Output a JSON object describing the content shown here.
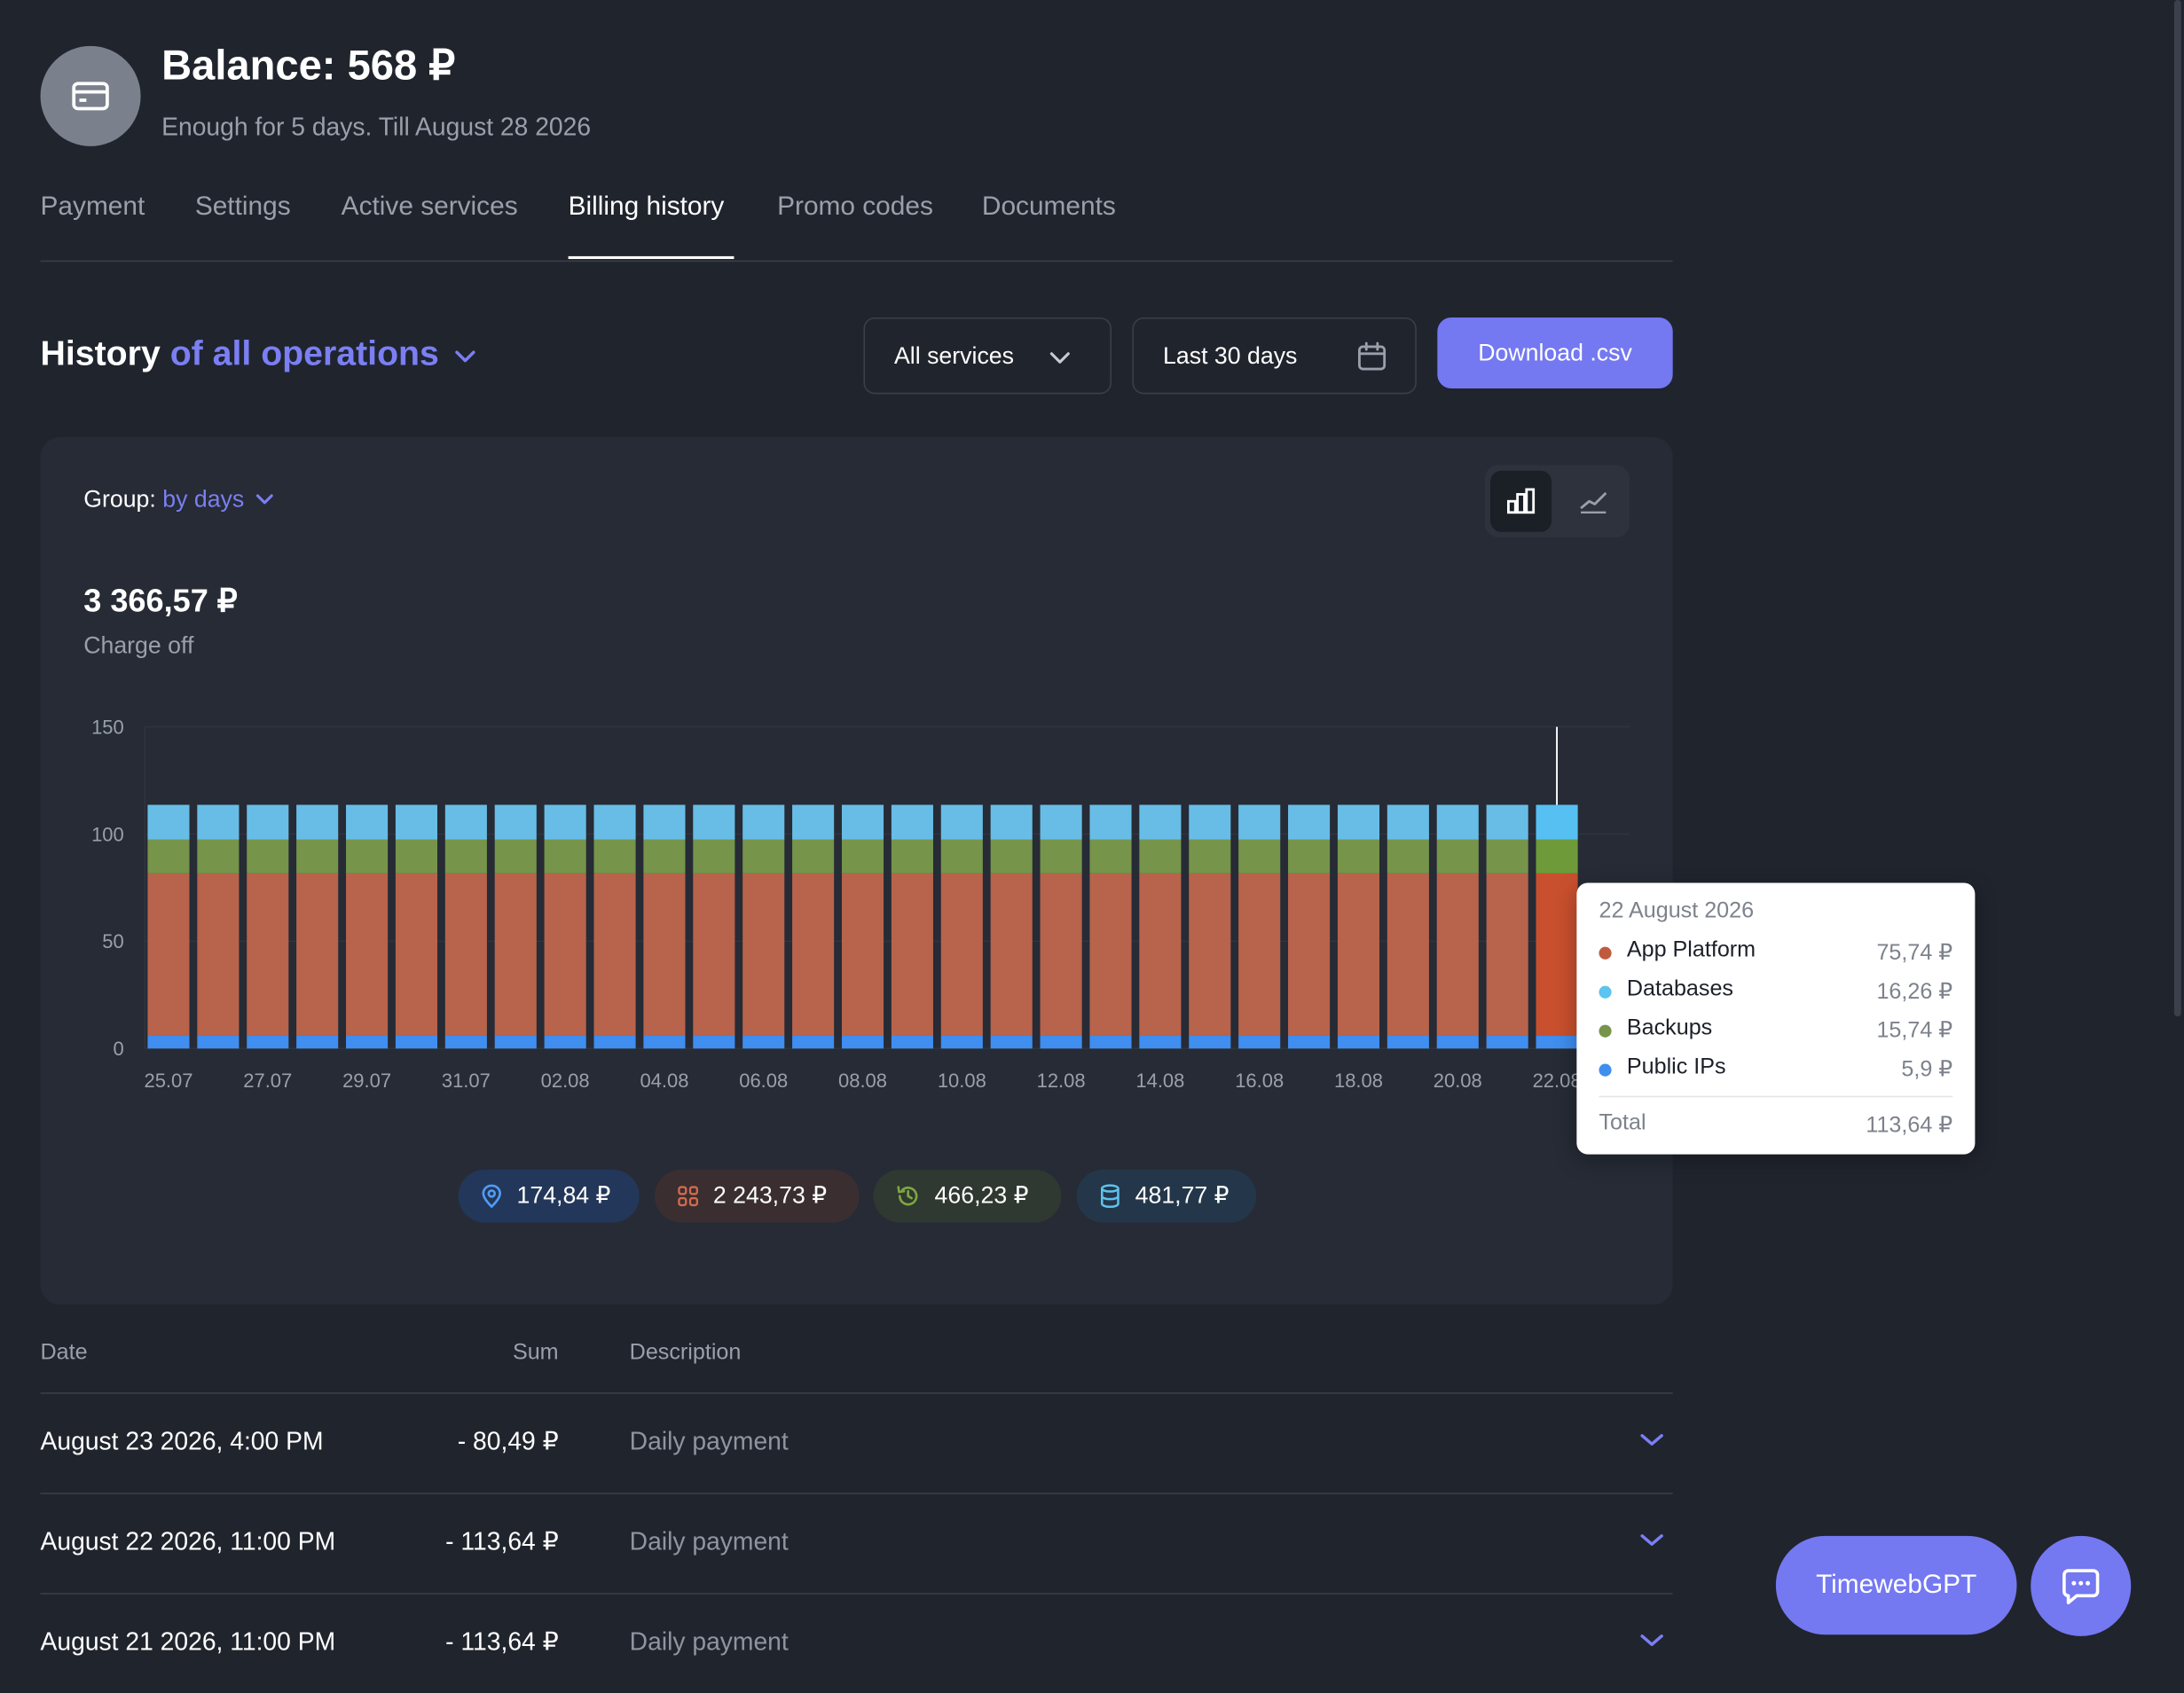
{
  "header": {
    "icon": "credit-card-icon",
    "balance": "Balance: 568 ₽",
    "subtitle": "Enough for 5 days. Till August 28 2026"
  },
  "tabs": [
    {
      "label": "Payment"
    },
    {
      "label": "Settings"
    },
    {
      "label": "Active services"
    },
    {
      "label": "Billing history",
      "active": true
    },
    {
      "label": "Promo codes"
    },
    {
      "label": "Documents"
    }
  ],
  "history": {
    "title": "History",
    "scope": "of all operations",
    "services_select": "All services",
    "period_select": "Last 30 days",
    "download_label": "Download .csv"
  },
  "chart_card": {
    "group_label": "Group:",
    "group_value": "by days",
    "total": "3 366,57 ₽",
    "total_label": "Charge off"
  },
  "chart_data": {
    "type": "bar",
    "stacked": true,
    "categories": [
      "25.07",
      "26.07",
      "27.07",
      "28.07",
      "29.07",
      "30.07",
      "31.07",
      "01.08",
      "02.08",
      "03.08",
      "04.08",
      "05.08",
      "06.08",
      "07.08",
      "08.08",
      "09.08",
      "10.08",
      "11.08",
      "12.08",
      "13.08",
      "14.08",
      "15.08",
      "16.08",
      "17.08",
      "18.08",
      "19.08",
      "20.08",
      "21.08",
      "22.08"
    ],
    "x_tick_labels": [
      "25.07",
      "27.07",
      "29.07",
      "31.07",
      "02.08",
      "04.08",
      "06.08",
      "08.08",
      "10.08",
      "12.08",
      "14.08",
      "16.08",
      "18.08",
      "20.08",
      "22.08"
    ],
    "ylim": [
      0,
      150
    ],
    "yticks": [
      0,
      50,
      100,
      150
    ],
    "highlight_index": 28,
    "series": [
      {
        "name": "Public IPs",
        "color": "#3f8ef0",
        "values": [
          5.9,
          5.9,
          5.9,
          5.9,
          5.9,
          5.9,
          5.9,
          5.9,
          5.9,
          5.9,
          5.9,
          5.9,
          5.9,
          5.9,
          5.9,
          5.9,
          5.9,
          5.9,
          5.9,
          5.9,
          5.9,
          5.9,
          5.9,
          5.9,
          5.9,
          5.9,
          5.9,
          5.9,
          5.9
        ]
      },
      {
        "name": "App Platform",
        "color": "#b8634b",
        "values": [
          75.74,
          75.74,
          75.74,
          75.74,
          75.74,
          75.74,
          75.74,
          75.74,
          75.74,
          75.74,
          75.74,
          75.74,
          75.74,
          75.74,
          75.74,
          75.74,
          75.74,
          75.74,
          75.74,
          75.74,
          75.74,
          75.74,
          75.74,
          75.74,
          75.74,
          75.74,
          75.74,
          75.74,
          75.74
        ]
      },
      {
        "name": "Backups",
        "color": "#76944a",
        "values": [
          15.74,
          15.74,
          15.74,
          15.74,
          15.74,
          15.74,
          15.74,
          15.74,
          15.74,
          15.74,
          15.74,
          15.74,
          15.74,
          15.74,
          15.74,
          15.74,
          15.74,
          15.74,
          15.74,
          15.74,
          15.74,
          15.74,
          15.74,
          15.74,
          15.74,
          15.74,
          15.74,
          15.74,
          15.74
        ]
      },
      {
        "name": "Databases",
        "color": "#67bde6",
        "values": [
          16.26,
          16.26,
          16.26,
          16.26,
          16.26,
          16.26,
          16.26,
          16.26,
          16.26,
          16.26,
          16.26,
          16.26,
          16.26,
          16.26,
          16.26,
          16.26,
          16.26,
          16.26,
          16.26,
          16.26,
          16.26,
          16.26,
          16.26,
          16.26,
          16.26,
          16.26,
          16.26,
          16.26,
          16.26
        ]
      }
    ],
    "highlight_colors": [
      "#3f8ef0",
      "#c9502e",
      "#6f9a3a",
      "#56c0f3"
    ]
  },
  "tooltip": {
    "date": "22 August 2026",
    "rows": [
      {
        "name": "App Platform",
        "value": "75,74 ₽",
        "color": "#c05a3f"
      },
      {
        "name": "Databases",
        "value": "16,26 ₽",
        "color": "#5cc4ef"
      },
      {
        "name": "Backups",
        "value": "15,74 ₽",
        "color": "#76944a"
      },
      {
        "name": "Public IPs",
        "value": "5,9 ₽",
        "color": "#3f8ef0"
      }
    ],
    "total_label": "Total",
    "total_value": "113,64 ₽"
  },
  "summary_pills": [
    {
      "icon": "location-pin-icon",
      "value": "174,84 ₽",
      "bg": "#23375a",
      "fg": "#4f9cf5"
    },
    {
      "icon": "apps-grid-icon",
      "value": "2 243,73 ₽",
      "bg": "#3a2e30",
      "fg": "#d46a4c"
    },
    {
      "icon": "restore-clock-icon",
      "value": "466,23 ₽",
      "bg": "#2f3831",
      "fg": "#7da544"
    },
    {
      "icon": "database-icon",
      "value": "481,77 ₽",
      "bg": "#24374a",
      "fg": "#5ec3ee"
    }
  ],
  "table": {
    "headers": {
      "date": "Date",
      "sum": "Sum",
      "description": "Description"
    },
    "rows": [
      {
        "date": "August 23 2026, 4:00 PM",
        "sum": "- 80,49 ₽",
        "description": "Daily payment"
      },
      {
        "date": "August 22 2026, 11:00 PM",
        "sum": "- 113,64 ₽",
        "description": "Daily payment"
      },
      {
        "date": "August 21 2026, 11:00 PM",
        "sum": "- 113,64 ₽",
        "description": "Daily payment"
      }
    ]
  },
  "floating": {
    "gpt_label": "TimewebGPT",
    "chat_icon": "chat-bubble-icon"
  },
  "colors": {
    "accent": "#7478f1",
    "background": "#20242d",
    "card": "#262b35"
  }
}
